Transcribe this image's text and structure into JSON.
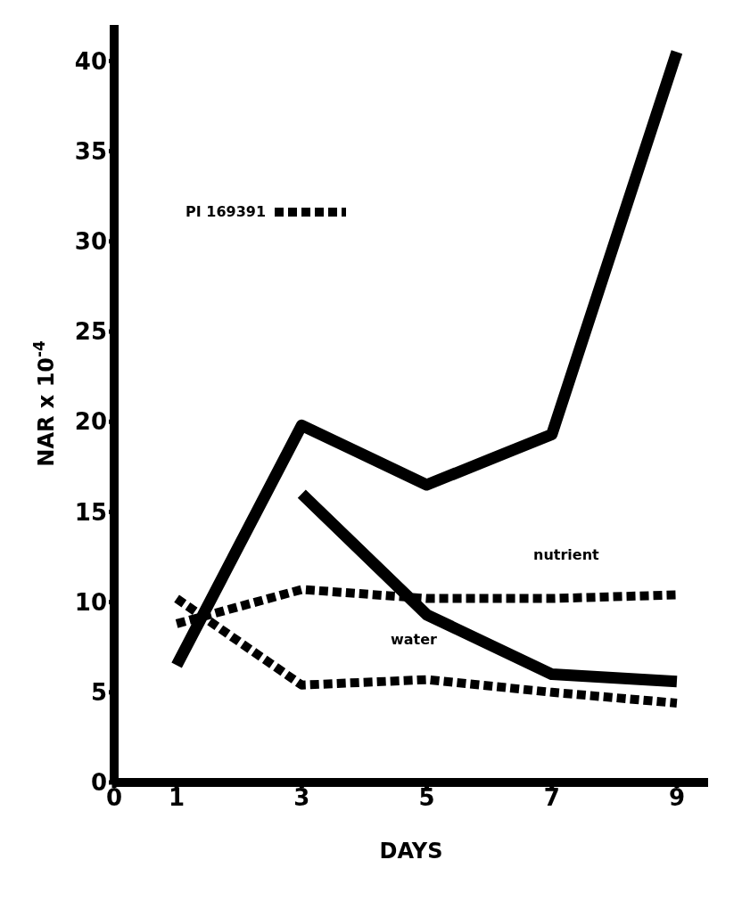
{
  "chart_data": {
    "type": "line",
    "xlabel": "DAYS",
    "ylabel": "NAR x 10$^{-4}$",
    "xlim": [
      0,
      9.5
    ],
    "xticks": [
      0,
      1,
      3,
      5,
      7,
      9
    ],
    "ylim": [
      0,
      42
    ],
    "yticks": [
      0,
      5,
      10,
      15,
      20,
      25,
      30,
      35,
      40
    ],
    "grid": false,
    "legend": "top left",
    "marker": "none",
    "series": [
      {
        "color": "#000000",
        "line_style": "solid",
        "x": [
          1,
          3,
          5,
          7,
          9
        ],
        "values": [
          6.5,
          19.8,
          16.5,
          19.3,
          40.5
        ]
      },
      {
        "color": "#000000",
        "line_style": "solid",
        "x": [
          3,
          5,
          7,
          9
        ],
        "values": [
          16,
          9.3,
          6,
          5.6
        ]
      },
      {
        "name": "PI 169391",
        "color": "#000000",
        "line_style": "dashed",
        "x": [
          1,
          3,
          5,
          7,
          9
        ],
        "values": [
          8.8,
          10.7,
          10.2,
          10.2,
          10.4
        ]
      },
      {
        "color": "#000000",
        "line_style": "dashed",
        "x": [
          1,
          3,
          5,
          7,
          9
        ],
        "values": [
          10.2,
          5.4,
          5.7,
          5,
          4.4
        ]
      }
    ],
    "annotations": [
      "nutrient",
      "water"
    ]
  }
}
